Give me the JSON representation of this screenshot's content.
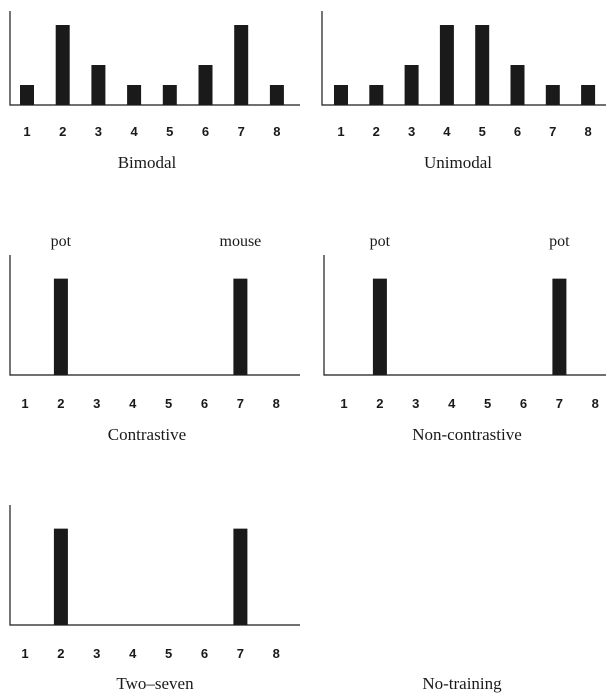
{
  "chart_data": [
    {
      "type": "bar",
      "title": "Bimodal",
      "categories": [
        "1",
        "2",
        "3",
        "4",
        "5",
        "6",
        "7",
        "8"
      ],
      "values": [
        1,
        4,
        2,
        1,
        1,
        2,
        4,
        1
      ],
      "ylim": [
        0,
        4
      ],
      "annotations": []
    },
    {
      "type": "bar",
      "title": "Unimodal",
      "categories": [
        "1",
        "2",
        "3",
        "4",
        "5",
        "6",
        "7",
        "8"
      ],
      "values": [
        1,
        1,
        2,
        4,
        4,
        2,
        1,
        1
      ],
      "ylim": [
        0,
        4
      ],
      "annotations": []
    },
    {
      "type": "bar",
      "title": "Contrastive",
      "categories": [
        "1",
        "2",
        "3",
        "4",
        "5",
        "6",
        "7",
        "8"
      ],
      "values": [
        0,
        1,
        0,
        0,
        0,
        0,
        1,
        0
      ],
      "ylim": [
        0,
        1.1
      ],
      "annotations": [
        {
          "category": "2",
          "text": "pot"
        },
        {
          "category": "7",
          "text": "mouse"
        }
      ]
    },
    {
      "type": "bar",
      "title": "Non-contrastive",
      "categories": [
        "1",
        "2",
        "3",
        "4",
        "5",
        "6",
        "7",
        "8"
      ],
      "values": [
        0,
        1,
        0,
        0,
        0,
        0,
        1,
        0
      ],
      "ylim": [
        0,
        1.1
      ],
      "annotations": [
        {
          "category": "2",
          "text": "pot"
        },
        {
          "category": "7",
          "text": "pot"
        }
      ]
    },
    {
      "type": "bar",
      "title": "Two–seven",
      "categories": [
        "1",
        "2",
        "3",
        "4",
        "5",
        "6",
        "7",
        "8"
      ],
      "values": [
        0,
        1,
        0,
        0,
        0,
        0,
        1,
        0
      ],
      "ylim": [
        0,
        1.1
      ],
      "annotations": []
    },
    {
      "type": "bar",
      "title": "No-training",
      "categories": [],
      "values": [],
      "ylim": [
        0,
        1
      ],
      "annotations": [],
      "empty": true
    }
  ]
}
